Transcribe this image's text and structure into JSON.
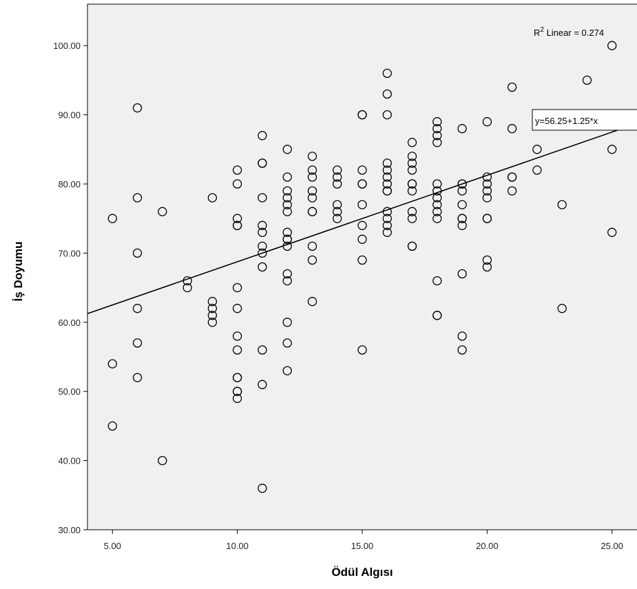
{
  "chart_data": {
    "type": "scatter",
    "xlabel": "Ödül Algısı",
    "ylabel": "İş Doyumu",
    "xlim": [
      4,
      26
    ],
    "ylim": [
      30,
      106
    ],
    "x_ticks": [
      5,
      10,
      15,
      20,
      25
    ],
    "y_ticks": [
      30,
      40,
      50,
      60,
      70,
      80,
      90,
      100
    ],
    "x_tick_labels": [
      "5.00",
      "10.00",
      "15.00",
      "20.00",
      "25.00"
    ],
    "y_tick_labels": [
      "30.00",
      "40.00",
      "50.00",
      "60.00",
      "70.00",
      "80.00",
      "90.00",
      "100.00"
    ],
    "grid": false,
    "fit_line": {
      "intercept": 56.25,
      "slope": 1.25,
      "label": "y=56.25+1.25*x"
    },
    "r2_label": {
      "prefix": "R",
      "sup": "2",
      "rest": " Linear = 0.274"
    },
    "colors": {
      "plot_bg": "#f0f0f0",
      "marker_stroke": "#000000",
      "line": "#000000"
    },
    "points": [
      [
        5,
        75
      ],
      [
        5,
        54
      ],
      [
        5,
        45
      ],
      [
        6,
        91
      ],
      [
        6,
        78
      ],
      [
        6,
        70
      ],
      [
        6,
        62
      ],
      [
        6,
        57
      ],
      [
        6,
        52
      ],
      [
        7,
        76
      ],
      [
        7,
        40
      ],
      [
        8,
        66
      ],
      [
        8,
        65
      ],
      [
        9,
        78
      ],
      [
        9,
        63
      ],
      [
        9,
        62
      ],
      [
        9,
        61
      ],
      [
        9,
        60
      ],
      [
        10,
        82
      ],
      [
        10,
        80
      ],
      [
        10,
        75
      ],
      [
        10,
        74
      ],
      [
        10,
        74
      ],
      [
        10,
        65
      ],
      [
        10,
        62
      ],
      [
        10,
        58
      ],
      [
        10,
        56
      ],
      [
        10,
        52
      ],
      [
        10,
        52
      ],
      [
        10,
        50
      ],
      [
        10,
        50
      ],
      [
        10,
        49
      ],
      [
        11,
        87
      ],
      [
        11,
        83
      ],
      [
        11,
        83
      ],
      [
        11,
        78
      ],
      [
        11,
        74
      ],
      [
        11,
        73
      ],
      [
        11,
        71
      ],
      [
        11,
        70
      ],
      [
        11,
        68
      ],
      [
        11,
        56
      ],
      [
        11,
        51
      ],
      [
        11,
        36
      ],
      [
        12,
        85
      ],
      [
        12,
        81
      ],
      [
        12,
        79
      ],
      [
        12,
        78
      ],
      [
        12,
        77
      ],
      [
        12,
        76
      ],
      [
        12,
        73
      ],
      [
        12,
        72
      ],
      [
        12,
        72
      ],
      [
        12,
        71
      ],
      [
        12,
        67
      ],
      [
        12,
        66
      ],
      [
        12,
        60
      ],
      [
        12,
        57
      ],
      [
        12,
        53
      ],
      [
        13,
        84
      ],
      [
        13,
        82
      ],
      [
        13,
        81
      ],
      [
        13,
        79
      ],
      [
        13,
        78
      ],
      [
        13,
        76
      ],
      [
        13,
        76
      ],
      [
        13,
        71
      ],
      [
        13,
        69
      ],
      [
        13,
        63
      ],
      [
        14,
        82
      ],
      [
        14,
        81
      ],
      [
        14,
        80
      ],
      [
        14,
        77
      ],
      [
        14,
        76
      ],
      [
        14,
        75
      ],
      [
        15,
        90
      ],
      [
        15,
        90
      ],
      [
        15,
        82
      ],
      [
        15,
        80
      ],
      [
        15,
        80
      ],
      [
        15,
        77
      ],
      [
        15,
        74
      ],
      [
        15,
        72
      ],
      [
        15,
        69
      ],
      [
        15,
        56
      ],
      [
        16,
        96
      ],
      [
        16,
        93
      ],
      [
        16,
        90
      ],
      [
        16,
        83
      ],
      [
        16,
        82
      ],
      [
        16,
        81
      ],
      [
        16,
        80
      ],
      [
        16,
        79
      ],
      [
        16,
        79
      ],
      [
        16,
        76
      ],
      [
        16,
        75
      ],
      [
        16,
        74
      ],
      [
        16,
        73
      ],
      [
        17,
        86
      ],
      [
        17,
        84
      ],
      [
        17,
        83
      ],
      [
        17,
        82
      ],
      [
        17,
        80
      ],
      [
        17,
        80
      ],
      [
        17,
        79
      ],
      [
        17,
        76
      ],
      [
        17,
        75
      ],
      [
        17,
        71
      ],
      [
        17,
        71
      ],
      [
        18,
        89
      ],
      [
        18,
        88
      ],
      [
        18,
        87
      ],
      [
        18,
        86
      ],
      [
        18,
        80
      ],
      [
        18,
        79
      ],
      [
        18,
        78
      ],
      [
        18,
        77
      ],
      [
        18,
        76
      ],
      [
        18,
        75
      ],
      [
        18,
        66
      ],
      [
        18,
        61
      ],
      [
        18,
        61
      ],
      [
        19,
        88
      ],
      [
        19,
        80
      ],
      [
        19,
        80
      ],
      [
        19,
        79
      ],
      [
        19,
        77
      ],
      [
        19,
        75
      ],
      [
        19,
        75
      ],
      [
        19,
        74
      ],
      [
        19,
        67
      ],
      [
        19,
        58
      ],
      [
        19,
        56
      ],
      [
        20,
        89
      ],
      [
        20,
        81
      ],
      [
        20,
        80
      ],
      [
        20,
        79
      ],
      [
        20,
        78
      ],
      [
        20,
        75
      ],
      [
        20,
        75
      ],
      [
        20,
        69
      ],
      [
        20,
        68
      ],
      [
        21,
        94
      ],
      [
        21,
        88
      ],
      [
        21,
        81
      ],
      [
        21,
        81
      ],
      [
        21,
        79
      ],
      [
        22,
        85
      ],
      [
        22,
        82
      ],
      [
        23,
        77
      ],
      [
        23,
        62
      ],
      [
        24,
        95
      ],
      [
        25,
        100
      ],
      [
        25,
        85
      ],
      [
        25,
        73
      ]
    ]
  }
}
